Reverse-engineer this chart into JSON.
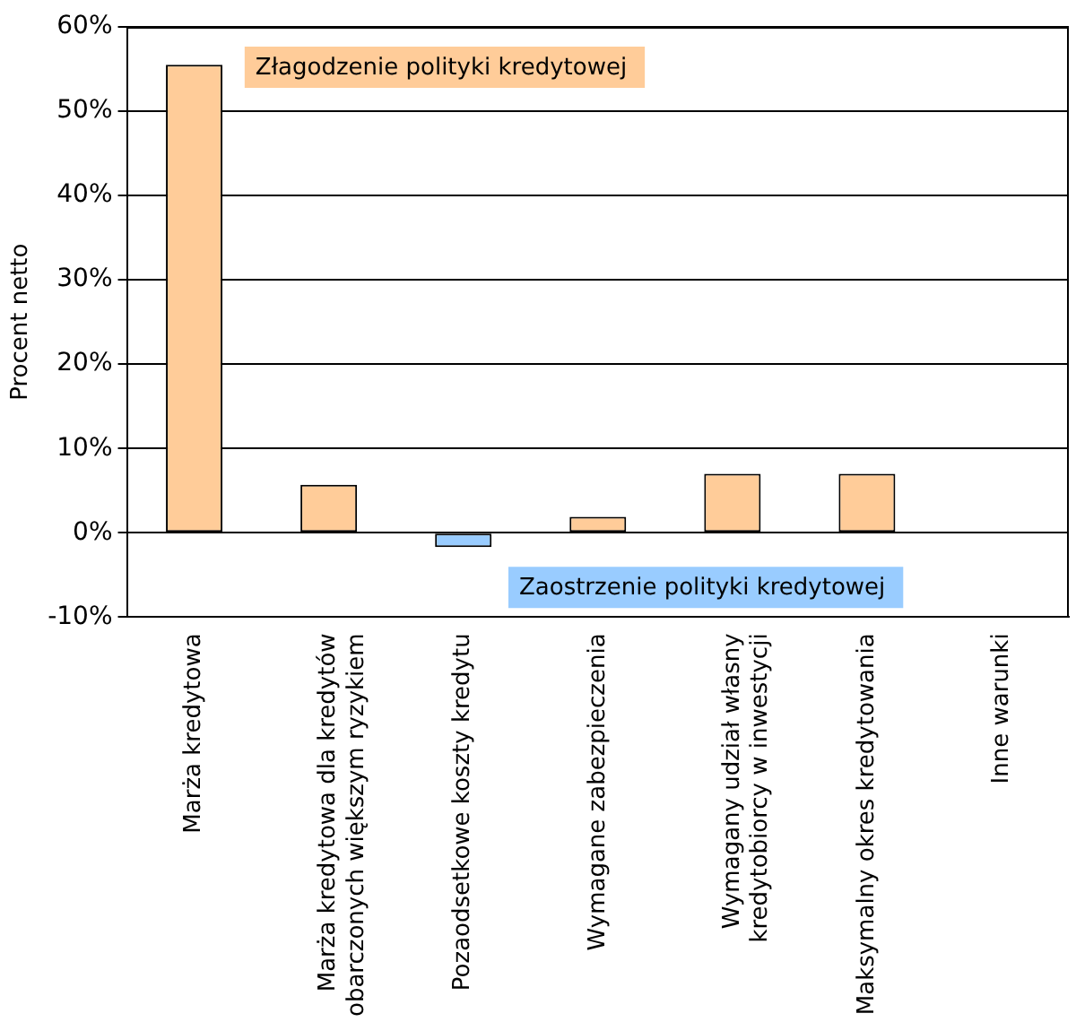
{
  "chart_data": {
    "type": "bar",
    "ylabel": "Procent netto",
    "categories": [
      "Marża kredytowa",
      "Marża kredytowa dla kredytów obarczonych większym ryzykiem",
      "Pozaodsetkowe koszty kredytu",
      "Wymagane zabezpieczenia",
      "Wymagany udział własny kredytobiorcy w inwestycji",
      "Maksymalny okres kredytowania",
      "Inne warunki"
    ],
    "values": [
      55.5,
      5.7,
      -1.7,
      1.9,
      7.0,
      7.0,
      0
    ],
    "colors": [
      "#ffcc99",
      "#ffcc99",
      "#99ccff",
      "#ffcc99",
      "#ffcc99",
      "#ffcc99",
      "#ffcc99"
    ],
    "ylim": [
      -10,
      60
    ],
    "yticks": [
      {
        "value": -10,
        "label": "-10%"
      },
      {
        "value": 0,
        "label": "0%"
      },
      {
        "value": 10,
        "label": "10%"
      },
      {
        "value": 20,
        "label": "20%"
      },
      {
        "value": 30,
        "label": "30%"
      },
      {
        "value": 40,
        "label": "40%"
      },
      {
        "value": 50,
        "label": "50%"
      },
      {
        "value": 60,
        "label": "60%"
      }
    ],
    "grid": "y",
    "legend": false,
    "annotations": [
      "Złagodzenie polityki kredytowej",
      "Zaostrzenie polityki kredytowej"
    ]
  }
}
